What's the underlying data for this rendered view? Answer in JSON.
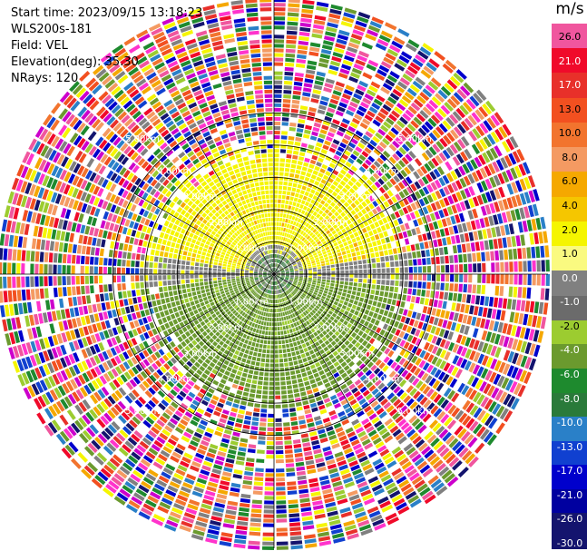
{
  "header": {
    "start_time": "Start time: 2023/09/15 13:18:23",
    "instrument": "WLS200s-181",
    "field": "Field: VEL",
    "elevation": "Elevation(deg): 35.30",
    "nrays": "NRays: 120"
  },
  "colorbar": {
    "unit": "m/s",
    "ticks": [
      "26.0",
      "21.0",
      "17.0",
      "13.0",
      "10.0",
      "8.0",
      "6.0",
      "4.0",
      "2.0",
      "1.0",
      "0.0",
      "-1.0",
      "-2.0",
      "-4.0",
      "-6.0",
      "-8.0",
      "-10.0",
      "-13.0",
      "-17.0",
      "-21.0",
      "-26.0",
      "-30.0"
    ],
    "segments": [
      "#f0569e",
      "#f00a2a",
      "#e8302a",
      "#f25020",
      "#f2742e",
      "#f49a62",
      "#f5a800",
      "#f5c600",
      "#f5f500",
      "#fafa80",
      "#808080",
      "#6b6b6b",
      "#9ccc30",
      "#6b9a2e",
      "#1e8a2e",
      "#2a7a3a",
      "#2a80c8",
      "#1040d0",
      "#0000cc",
      "#0000a0",
      "#14146e"
    ]
  },
  "chart_data": {
    "type": "heatmap",
    "projection": "PPI (polar)",
    "n_rays": 120,
    "value_range": [
      -30,
      26
    ],
    "range_rings": [
      "1.00km",
      "2.00km",
      "3.00km",
      "4.00km",
      "5.00km"
    ],
    "upper_rings": [
      "1.00km",
      "2.00km",
      "3.00km",
      "4.00km",
      "5.00km"
    ],
    "lower_rings": [
      "1.00km",
      "2.00km",
      "3.00km",
      "4.00km",
      "5.00km"
    ],
    "ring_radii_km": [
      1,
      2,
      3,
      4,
      5
    ],
    "max_range_km": 5.1
  }
}
